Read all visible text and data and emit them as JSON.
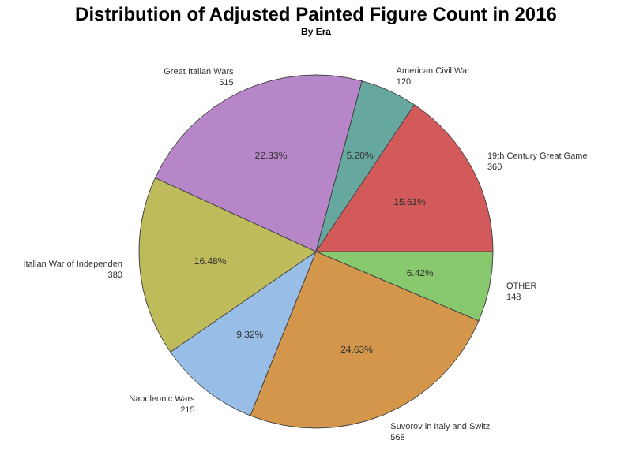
{
  "chart_data": {
    "type": "pie",
    "title": "Distribution of Adjusted Painted Figure Count in 2016",
    "subtitle": "By Era",
    "categories": [
      "OTHER",
      "Suvorov in Italy and Switz",
      "Napoleonic Wars",
      "Italian War of Independen",
      "Great Italian Wars",
      "American Civil War",
      "19th Century Great Game"
    ],
    "values": [
      6.42,
      24.63,
      9.32,
      16.48,
      22.33,
      5.2,
      15.61
    ],
    "colors": [
      "#88c86e",
      "#d3964b",
      "#98bde6",
      "#bdbb5a",
      "#b686c9",
      "#66a89e",
      "#d35a5a"
    ],
    "value_labels": [
      "6.42%",
      "24.63%",
      "9.32%",
      "16.48%",
      "22.33%",
      "5.20%",
      "15.61%"
    ],
    "annotations": [
      "148",
      "568",
      "215",
      "380",
      "515",
      "120",
      "360"
    ]
  }
}
